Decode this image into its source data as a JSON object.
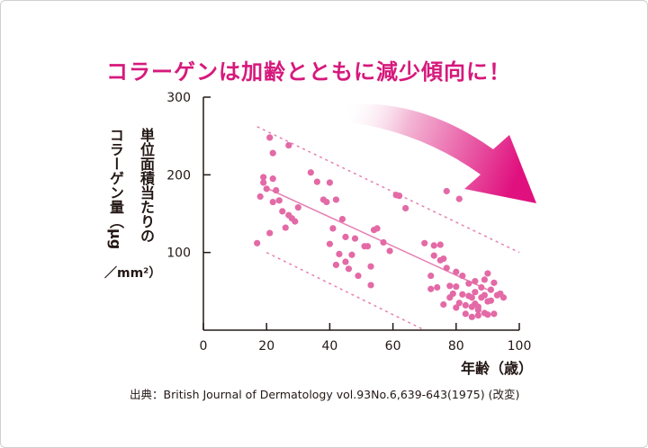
{
  "headline": "コラーゲンは加齢とともに減少傾向に！",
  "source": "出典：British Journal of Dermatology vol.93No.6,639-643(1975) (改変)",
  "colors": {
    "accent": "#d6197c",
    "point": "#e36aa6",
    "line": "#e680b4",
    "axis": "#231815"
  },
  "chart_data": {
    "type": "scatter",
    "title": "コラーゲンは加齢とともに減少傾向に！",
    "ylabel_line1": "単位面積当たりの",
    "ylabel_line2": "コラーゲン量（μg",
    "ylabel_line3": "／mm²）",
    "xlabel": "年齢（歳）",
    "xlim": [
      0,
      100
    ],
    "ylim": [
      0,
      300
    ],
    "x_ticks": [
      0,
      20,
      40,
      60,
      80,
      100
    ],
    "y_ticks": [
      100,
      200,
      300
    ],
    "grid": false,
    "trend_line": {
      "from": [
        20,
        183
      ],
      "to": [
        90,
        52
      ]
    },
    "band_upper": {
      "from": [
        17,
        262
      ],
      "to": [
        100,
        100
      ]
    },
    "band_lower": {
      "from": [
        20,
        100
      ],
      "to": [
        70,
        0
      ]
    },
    "series": [
      {
        "values": [
          [
            17,
            112
          ],
          [
            18,
            172
          ],
          [
            19,
            190
          ],
          [
            19,
            197
          ],
          [
            20,
            182
          ],
          [
            21,
            248
          ],
          [
            21,
            125
          ],
          [
            22,
            195
          ],
          [
            22,
            228
          ],
          [
            22,
            165
          ],
          [
            23,
            180
          ],
          [
            24,
            167
          ],
          [
            25,
            153
          ],
          [
            26,
            132
          ],
          [
            27,
            238
          ],
          [
            27,
            148
          ],
          [
            28,
            144
          ],
          [
            29,
            140
          ],
          [
            30,
            158
          ],
          [
            34,
            203
          ],
          [
            36,
            191
          ],
          [
            38,
            168
          ],
          [
            39,
            165
          ],
          [
            40,
            190
          ],
          [
            40,
            111
          ],
          [
            41,
            131
          ],
          [
            42,
            168
          ],
          [
            42,
            84
          ],
          [
            43,
            98
          ],
          [
            44,
            143
          ],
          [
            45,
            120
          ],
          [
            45,
            88
          ],
          [
            46,
            79
          ],
          [
            47,
            97
          ],
          [
            48,
            118
          ],
          [
            49,
            70
          ],
          [
            51,
            108
          ],
          [
            52,
            108
          ],
          [
            53,
            82
          ],
          [
            53,
            58
          ],
          [
            54,
            129
          ],
          [
            55,
            131
          ],
          [
            57,
            113
          ],
          [
            59,
            102
          ],
          [
            61,
            174
          ],
          [
            62,
            173
          ],
          [
            64,
            157
          ],
          [
            70,
            112
          ],
          [
            72,
            53
          ],
          [
            72,
            70
          ],
          [
            73,
            96
          ],
          [
            73,
            109
          ],
          [
            74,
            55
          ],
          [
            75,
            90
          ],
          [
            76,
            92
          ],
          [
            76,
            33
          ],
          [
            77,
            179
          ],
          [
            77,
            80
          ],
          [
            78,
            57
          ],
          [
            78,
            42
          ],
          [
            79,
            47
          ],
          [
            80,
            56
          ],
          [
            80,
            29
          ],
          [
            81,
            35
          ],
          [
            81,
            169
          ],
          [
            82,
            70
          ],
          [
            82,
            46
          ],
          [
            83,
            32
          ],
          [
            83,
            21
          ],
          [
            84,
            60
          ],
          [
            84,
            44
          ],
          [
            85,
            30
          ],
          [
            85,
            17
          ],
          [
            86,
            63
          ],
          [
            86,
            49
          ],
          [
            86,
            34
          ],
          [
            87,
            30
          ],
          [
            87,
            19
          ],
          [
            88,
            55
          ],
          [
            88,
            42
          ],
          [
            89,
            45
          ],
          [
            89,
            65
          ],
          [
            89,
            22
          ],
          [
            90,
            73
          ],
          [
            90,
            37
          ],
          [
            90,
            20
          ],
          [
            91,
            52
          ],
          [
            91,
            38
          ],
          [
            92,
            61
          ],
          [
            92,
            21
          ],
          [
            93,
            45
          ],
          [
            94,
            47
          ],
          [
            95,
            42
          ],
          [
            87,
            26
          ],
          [
            85,
            42
          ],
          [
            80,
            75
          ],
          [
            75,
            110
          ]
        ]
      }
    ]
  }
}
